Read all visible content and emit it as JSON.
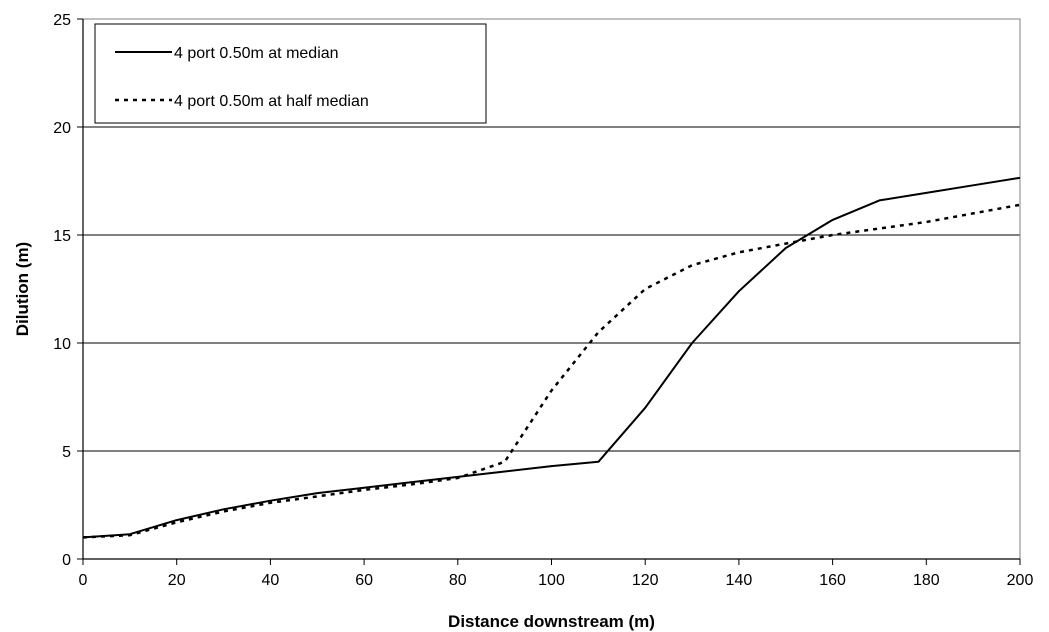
{
  "chart_data": {
    "type": "line",
    "title": "",
    "xlabel": "Distance downstream (m)",
    "ylabel": "Dilution (m)",
    "xlim": [
      0,
      200
    ],
    "ylim": [
      0,
      25
    ],
    "xticks": [
      0,
      20,
      40,
      60,
      80,
      100,
      120,
      140,
      160,
      180,
      200
    ],
    "yticks": [
      0,
      5,
      10,
      15,
      20,
      25
    ],
    "grid": "horizontal",
    "legend_position": "top-left",
    "series": [
      {
        "name": "4 port 0.50m at median",
        "style": "solid",
        "color": "#000000",
        "x": [
          0,
          10,
          20,
          30,
          40,
          50,
          60,
          70,
          80,
          90,
          100,
          110,
          120,
          130,
          140,
          150,
          160,
          170,
          180,
          190,
          200
        ],
        "y": [
          1.0,
          1.15,
          1.8,
          2.3,
          2.7,
          3.05,
          3.3,
          3.55,
          3.8,
          4.05,
          4.3,
          4.5,
          7.0,
          10.0,
          12.4,
          14.4,
          15.7,
          16.6,
          16.95,
          17.3,
          17.65
        ]
      },
      {
        "name": "4 port 0.50m at half median",
        "style": "dashed",
        "color": "#000000",
        "x": [
          0,
          10,
          20,
          30,
          40,
          50,
          60,
          70,
          80,
          90,
          100,
          110,
          120,
          130,
          140,
          150,
          160,
          170,
          180,
          190,
          200
        ],
        "y": [
          1.0,
          1.1,
          1.7,
          2.2,
          2.6,
          2.9,
          3.2,
          3.45,
          3.75,
          4.5,
          7.8,
          10.5,
          12.5,
          13.6,
          14.2,
          14.6,
          15.0,
          15.3,
          15.6,
          16.0,
          16.4
        ]
      }
    ]
  }
}
